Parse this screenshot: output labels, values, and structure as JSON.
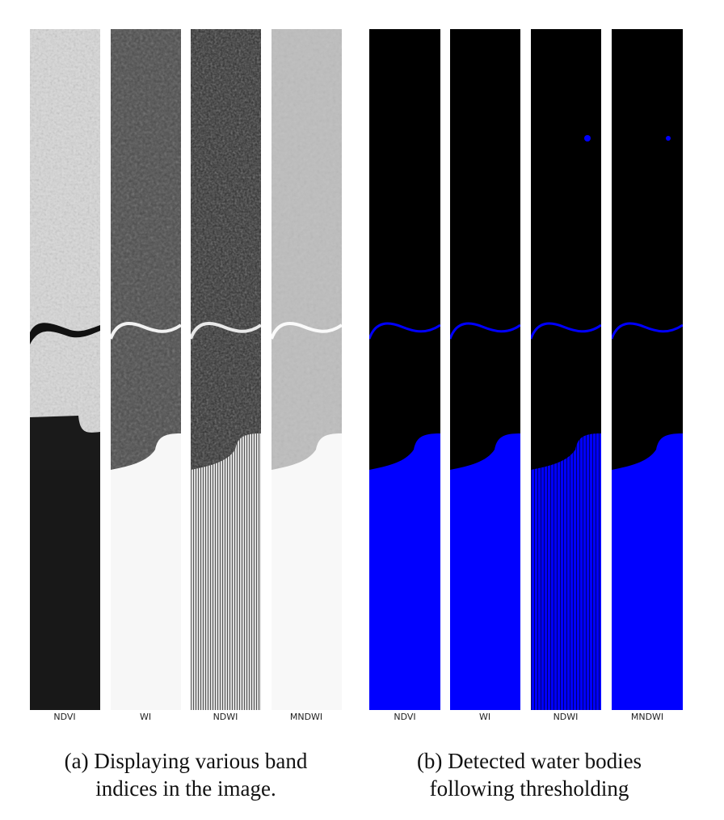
{
  "figure": {
    "subfigures": [
      {
        "id": "a",
        "caption": "(a) Displaying various band indices in the image.",
        "panels": [
          {
            "label": "NDVI"
          },
          {
            "label": "WI"
          },
          {
            "label": "NDWI"
          },
          {
            "label": "MNDWI"
          }
        ]
      },
      {
        "id": "b",
        "caption": "(b) Detected water bodies following thresholding",
        "panels": [
          {
            "label": "NDVI"
          },
          {
            "label": "WI"
          },
          {
            "label": "NDWI"
          },
          {
            "label": "MNDWI"
          }
        ]
      }
    ],
    "colors": {
      "water_mask": "#0000ff",
      "background_mask": "#000000"
    }
  }
}
